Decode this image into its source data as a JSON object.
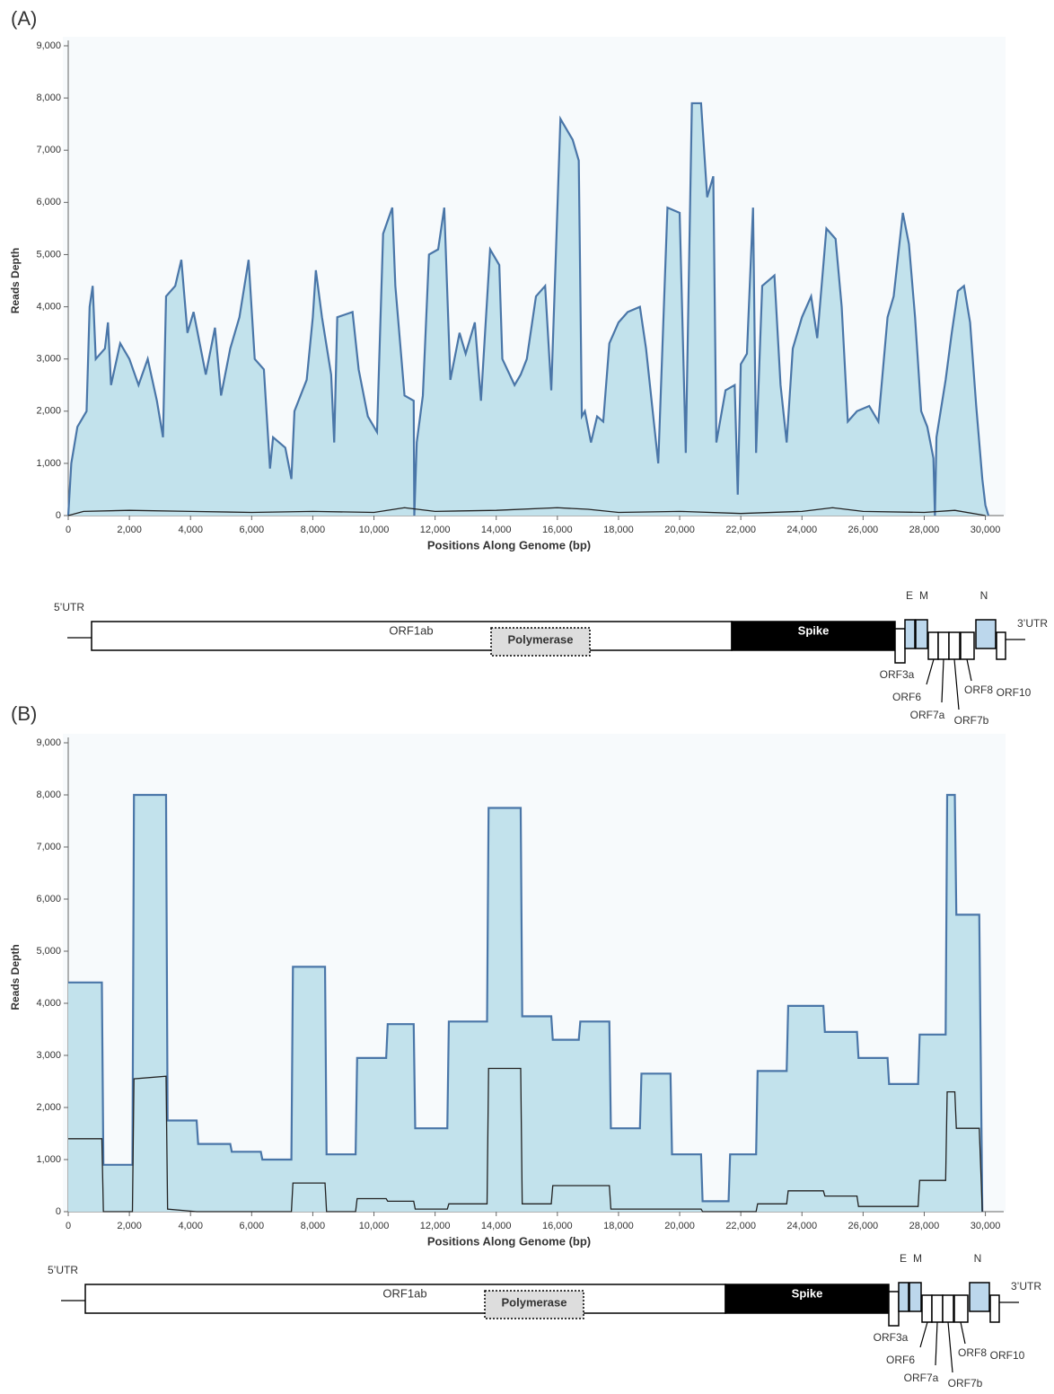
{
  "chart_data": [
    {
      "type": "area",
      "panel": "(A)",
      "xlabel": "Positions Along Genome (bp)",
      "ylabel": "Reads Depth",
      "xlim": [
        0,
        30600
      ],
      "ylim": [
        0,
        9000
      ],
      "xticks": [
        0,
        {
          "value": 2000,
          "label": "2,000"
        },
        {
          "value": 4000,
          "label": "4,000"
        },
        {
          "value": 6000,
          "label": "6,000"
        },
        {
          "value": 8000,
          "label": "8,000"
        },
        {
          "value": 10000,
          "label": "10,000"
        },
        {
          "value": 12000,
          "label": "12,000"
        },
        {
          "value": 14000,
          "label": "14,000"
        },
        {
          "value": 16000,
          "label": "16,000"
        },
        {
          "value": 18000,
          "label": "18,000"
        },
        {
          "value": 20000,
          "label": "20,000"
        },
        {
          "value": 22000,
          "label": "22,000"
        },
        {
          "value": 24000,
          "label": "24,000"
        },
        {
          "value": 26000,
          "label": "26,000"
        },
        {
          "value": 28000,
          "label": "28,000"
        },
        {
          "value": 30000,
          "label": "30,000"
        }
      ],
      "yticks": [
        0,
        {
          "value": 1000,
          "label": "1,000"
        },
        {
          "value": 2000,
          "label": "2,000"
        },
        {
          "value": 3000,
          "label": "3,000"
        },
        {
          "value": 4000,
          "label": "4,000"
        },
        {
          "value": 5000,
          "label": "5,000"
        },
        {
          "value": 6000,
          "label": "6,000"
        },
        {
          "value": 7000,
          "label": "7,000"
        },
        {
          "value": 8000,
          "label": "8,000"
        },
        {
          "value": 9000,
          "label": "9,000"
        }
      ],
      "series": [
        {
          "color": "#4a76a8",
          "fill": "#c2e2ec",
          "x": [
            0,
            100,
            300,
            600,
            700,
            800,
            900,
            1200,
            1300,
            1400,
            1700,
            2000,
            2300,
            2600,
            2900,
            3100,
            3200,
            3500,
            3700,
            3900,
            4100,
            4500,
            4800,
            5000,
            5300,
            5600,
            5900,
            6100,
            6400,
            6600,
            6700,
            7100,
            7300,
            7400,
            7800,
            8000,
            8100,
            8300,
            8600,
            8700,
            8800,
            9300,
            9500,
            9800,
            10100,
            10300,
            10600,
            10700,
            11000,
            11300,
            11320,
            11400,
            11600,
            11800,
            12100,
            12300,
            12500,
            12800,
            13000,
            13300,
            13500,
            13800,
            14100,
            14200,
            14600,
            14800,
            15000,
            15300,
            15600,
            15800,
            16100,
            16500,
            16700,
            16800,
            16900,
            17100,
            17300,
            17500,
            17700,
            18000,
            18300,
            18700,
            18900,
            19100,
            19300,
            19600,
            20000,
            20200,
            20400,
            20700,
            20900,
            21100,
            21200,
            21500,
            21800,
            21900,
            22000,
            22200,
            22400,
            22500,
            22700,
            23100,
            23300,
            23500,
            23700,
            24000,
            24300,
            24500,
            24800,
            25100,
            25300,
            25500,
            25800,
            26200,
            26500,
            26800,
            27000,
            27300,
            27500,
            27700,
            27900,
            28100,
            28300,
            28350,
            28400,
            28700,
            28900,
            29100,
            29300,
            29500,
            29700,
            29900,
            30000,
            30100
          ],
          "values": [
            0,
            1000,
            1700,
            2000,
            4000,
            4400,
            3000,
            3200,
            3700,
            2500,
            3300,
            3000,
            2500,
            3000,
            2200,
            1500,
            4200,
            4400,
            4900,
            3500,
            3900,
            2700,
            3600,
            2300,
            3200,
            3800,
            4900,
            3000,
            2800,
            900,
            1500,
            1300,
            700,
            2000,
            2600,
            3800,
            4700,
            3800,
            2700,
            1400,
            3800,
            3900,
            2800,
            1900,
            1600,
            5400,
            5900,
            4400,
            2300,
            2200,
            0,
            1400,
            2300,
            5000,
            5100,
            5900,
            2600,
            3500,
            3100,
            3700,
            2200,
            5100,
            4800,
            3000,
            2500,
            2700,
            3000,
            4200,
            4400,
            2400,
            7600,
            7200,
            6800,
            1900,
            2000,
            1400,
            1900,
            1800,
            3300,
            3700,
            3900,
            4000,
            3200,
            2100,
            1000,
            5900,
            5800,
            1200,
            7900,
            7900,
            6100,
            6500,
            1400,
            2400,
            2500,
            400,
            2900,
            3100,
            5900,
            1200,
            4400,
            4600,
            2500,
            1400,
            3200,
            3800,
            4200,
            3400,
            5500,
            5300,
            4000,
            1800,
            2000,
            2100,
            1800,
            3800,
            4200,
            5800,
            5200,
            3800,
            2000,
            1700,
            1100,
            0,
            1500,
            2600,
            3500,
            4300,
            4400,
            3700,
            2100,
            700,
            200,
            0
          ]
        },
        {
          "color": "#222222",
          "x": [
            0,
            500,
            2000,
            4000,
            6000,
            8000,
            10000,
            11000,
            12000,
            14000,
            16000,
            17000,
            18000,
            20000,
            22000,
            24000,
            25000,
            26000,
            28000,
            29000,
            30000
          ],
          "values": [
            0,
            80,
            100,
            80,
            60,
            80,
            60,
            150,
            80,
            100,
            150,
            120,
            60,
            80,
            40,
            80,
            150,
            80,
            60,
            100,
            0
          ]
        }
      ],
      "genome_map": {
        "utr5": "5’UTR",
        "orf1ab": "ORF1ab",
        "polymerase": "Polymerase",
        "spike": "Spike",
        "e": "E",
        "m": "M",
        "n": "N",
        "utr3": "3’UTR",
        "orf3a": "ORF3a",
        "orf6": "ORF6",
        "orf7a": "ORF7a",
        "orf7b": "ORF7b",
        "orf8": "ORF8",
        "orf10": "ORF10"
      }
    },
    {
      "type": "area",
      "panel": "(B)",
      "xlabel": "Positions Along Genome (bp)",
      "ylabel": "Reads Depth",
      "xlim": [
        0,
        30600
      ],
      "ylim": [
        0,
        9000
      ],
      "xticks": [
        0,
        {
          "value": 2000,
          "label": "2,000"
        },
        {
          "value": 4000,
          "label": "4,000"
        },
        {
          "value": 6000,
          "label": "6,000"
        },
        {
          "value": 8000,
          "label": "8,000"
        },
        {
          "value": 10000,
          "label": "10,000"
        },
        {
          "value": 12000,
          "label": "12,000"
        },
        {
          "value": 14000,
          "label": "14,000"
        },
        {
          "value": 16000,
          "label": "16,000"
        },
        {
          "value": 18000,
          "label": "18,000"
        },
        {
          "value": 20000,
          "label": "20,000"
        },
        {
          "value": 22000,
          "label": "22,000"
        },
        {
          "value": 24000,
          "label": "24,000"
        },
        {
          "value": 26000,
          "label": "26,000"
        },
        {
          "value": 28000,
          "label": "28,000"
        },
        {
          "value": 30000,
          "label": "30,000"
        }
      ],
      "yticks": [
        0,
        {
          "value": 1000,
          "label": "1,000"
        },
        {
          "value": 2000,
          "label": "2,000"
        },
        {
          "value": 3000,
          "label": "3,000"
        },
        {
          "value": 4000,
          "label": "4,000"
        },
        {
          "value": 5000,
          "label": "5,000"
        },
        {
          "value": 6000,
          "label": "6,000"
        },
        {
          "value": 7000,
          "label": "7,000"
        },
        {
          "value": 8000,
          "label": "8,000"
        },
        {
          "value": 9000,
          "label": "9,000"
        }
      ],
      "series": [
        {
          "color": "#4a76a8",
          "fill": "#c2e2ec",
          "x": [
            0,
            1100,
            1150,
            2100,
            2150,
            3200,
            3250,
            4200,
            4250,
            5300,
            5350,
            6300,
            6350,
            7300,
            7350,
            8400,
            8450,
            9400,
            9450,
            10400,
            10450,
            11300,
            11350,
            12400,
            12450,
            13700,
            13750,
            14800,
            14850,
            15800,
            15850,
            16700,
            16750,
            17700,
            17750,
            18700,
            18750,
            19700,
            19750,
            20700,
            20750,
            21600,
            21650,
            22500,
            22550,
            23500,
            23550,
            24700,
            24750,
            25800,
            25850,
            26800,
            26850,
            27800,
            27850,
            28700,
            28750,
            29000,
            29050,
            29800,
            29900
          ],
          "values": [
            4400,
            4400,
            900,
            900,
            8000,
            8000,
            1750,
            1750,
            1300,
            1300,
            1150,
            1150,
            1000,
            1000,
            4700,
            4700,
            1100,
            1100,
            2950,
            2950,
            3600,
            3600,
            1600,
            1600,
            3650,
            3650,
            7750,
            7750,
            3750,
            3750,
            3300,
            3300,
            3650,
            3650,
            1600,
            1600,
            2650,
            2650,
            1100,
            1100,
            200,
            200,
            1100,
            1100,
            2700,
            2700,
            3950,
            3950,
            3450,
            3450,
            2950,
            2950,
            2450,
            2450,
            3400,
            3400,
            8000,
            8000,
            5700,
            5700,
            0
          ]
        },
        {
          "color": "#222222",
          "x": [
            0,
            1100,
            1150,
            2100,
            2150,
            3200,
            3250,
            4200,
            7300,
            7350,
            8400,
            8450,
            9400,
            9450,
            10400,
            10450,
            11300,
            11350,
            12400,
            12450,
            13700,
            13750,
            14800,
            14850,
            15800,
            15850,
            17700,
            17750,
            20700,
            20750,
            22500,
            22550,
            23500,
            23550,
            24700,
            24750,
            25800,
            25850,
            27800,
            27850,
            28700,
            28750,
            29000,
            29050,
            29800,
            29900
          ],
          "values": [
            1400,
            1400,
            0,
            0,
            2550,
            2600,
            50,
            0,
            0,
            550,
            550,
            0,
            0,
            250,
            250,
            200,
            200,
            50,
            50,
            150,
            150,
            2750,
            2750,
            150,
            150,
            500,
            500,
            50,
            50,
            0,
            0,
            150,
            150,
            400,
            400,
            300,
            300,
            100,
            100,
            600,
            600,
            2300,
            2300,
            1600,
            1600,
            0
          ]
        }
      ],
      "genome_map": {
        "utr5": "5’UTR",
        "orf1ab": "ORF1ab",
        "polymerase": "Polymerase",
        "spike": "Spike",
        "e": "E",
        "m": "M",
        "n": "N",
        "utr3": "3’UTR",
        "orf3a": "ORF3a",
        "orf6": "ORF6",
        "orf7a": "ORF7a",
        "orf7b": "ORF7b",
        "orf8": "ORF8",
        "orf10": "ORF10"
      }
    }
  ]
}
